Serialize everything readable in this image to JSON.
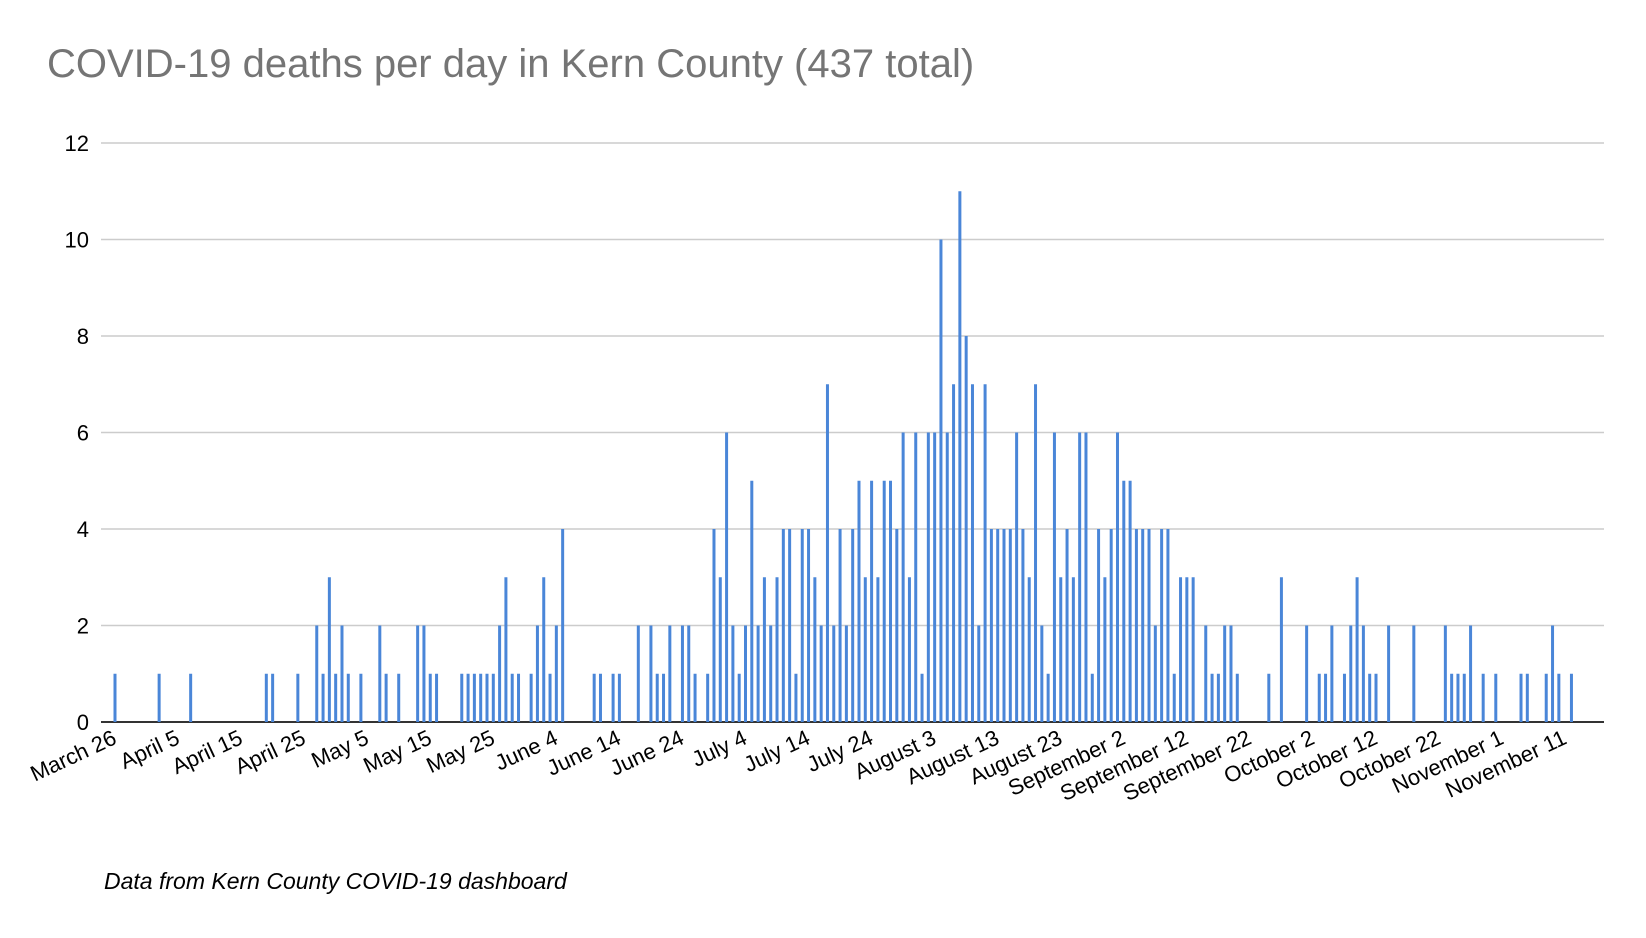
{
  "chart_data": {
    "type": "bar",
    "title": "COVID-19 deaths per day in Kern County (437 total)",
    "footnote": "Data from Kern County COVID-19 dashboard",
    "xlabel": "",
    "ylabel": "",
    "ylim": [
      0,
      12
    ],
    "yticks": [
      0,
      2,
      4,
      6,
      8,
      10,
      12
    ],
    "grid": true,
    "color": "#4a86d8",
    "start_date": "March 26",
    "x_tick_labels": [
      "March 26",
      "April 5",
      "April 15",
      "April 25",
      "May 5",
      "May 15",
      "May 25",
      "June 4",
      "June 14",
      "June 24",
      "July 4",
      "July 14",
      "July 24",
      "August 3",
      "August 13",
      "August 23",
      "September 2",
      "September 12",
      "September 22",
      "October 2",
      "October 12",
      "October 22",
      "November 1",
      "November 11"
    ],
    "values": [
      1,
      0,
      0,
      0,
      0,
      0,
      0,
      1,
      0,
      0,
      0,
      0,
      1,
      0,
      0,
      0,
      0,
      0,
      0,
      0,
      0,
      0,
      0,
      0,
      1,
      1,
      0,
      0,
      0,
      1,
      0,
      0,
      2,
      1,
      3,
      1,
      2,
      1,
      0,
      1,
      0,
      0,
      2,
      1,
      0,
      1,
      0,
      0,
      2,
      2,
      1,
      1,
      0,
      0,
      0,
      1,
      1,
      1,
      1,
      1,
      1,
      2,
      3,
      1,
      1,
      0,
      1,
      2,
      3,
      1,
      2,
      4,
      0,
      0,
      0,
      0,
      1,
      1,
      0,
      1,
      1,
      0,
      0,
      2,
      0,
      2,
      1,
      1,
      2,
      0,
      2,
      2,
      1,
      0,
      1,
      4,
      3,
      6,
      2,
      1,
      2,
      5,
      2,
      3,
      2,
      3,
      4,
      4,
      1,
      4,
      4,
      3,
      2,
      7,
      2,
      4,
      2,
      4,
      5,
      3,
      5,
      3,
      5,
      5,
      4,
      6,
      3,
      6,
      1,
      6,
      6,
      10,
      6,
      7,
      11,
      8,
      7,
      2,
      7,
      4,
      4,
      4,
      4,
      6,
      4,
      3,
      7,
      2,
      1,
      6,
      3,
      4,
      3,
      6,
      6,
      1,
      4,
      3,
      4,
      6,
      5,
      5,
      4,
      4,
      4,
      2,
      4,
      4,
      1,
      3,
      3,
      3,
      0,
      2,
      1,
      1,
      2,
      2,
      1,
      0,
      0,
      0,
      0,
      1,
      0,
      3,
      0,
      0,
      0,
      2,
      0,
      1,
      1,
      2,
      0,
      1,
      2,
      3,
      2,
      1,
      1,
      0,
      2,
      0,
      0,
      0,
      2,
      0,
      0,
      0,
      0,
      2,
      1,
      1,
      1,
      2,
      0,
      1,
      0,
      1,
      0,
      0,
      0,
      1,
      1,
      0,
      0,
      1,
      2,
      1,
      0,
      1
    ]
  }
}
